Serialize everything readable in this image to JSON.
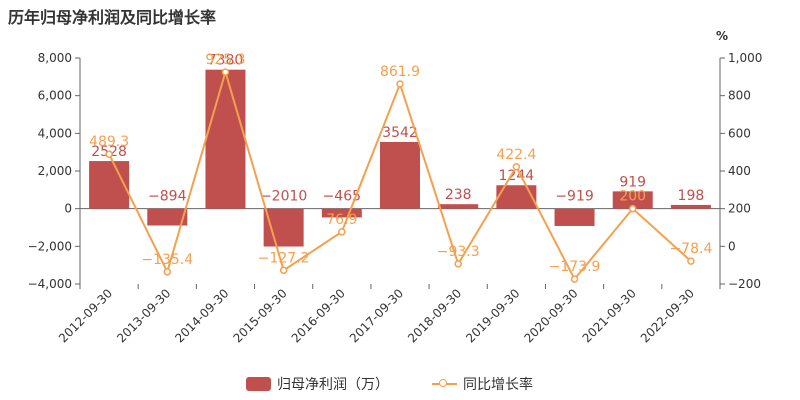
{
  "title": "历年归母净利润及同比增长率",
  "colors": {
    "bar": "#c0504d",
    "line": "#f5a04e",
    "axis": "#666666",
    "text": "#333333"
  },
  "chart_data": {
    "type": "bar",
    "title": "历年归母净利润及同比增长率",
    "categories": [
      "2012-09-30",
      "2013-09-30",
      "2014-09-30",
      "2015-09-30",
      "2016-09-30",
      "2017-09-30",
      "2018-09-30",
      "2019-09-30",
      "2020-09-30",
      "2021-09-30",
      "2022-09-30"
    ],
    "series": [
      {
        "name": "归母净利润（万）",
        "type": "bar",
        "axis": "left",
        "values": [
          2528,
          -894,
          7380,
          -2010,
          -465,
          3542,
          238,
          1244,
          -919,
          919,
          198
        ],
        "labels": [
          "2528",
          "−894",
          "7380",
          "−2010",
          "−465",
          "3542",
          "238",
          "1244",
          "−919",
          "919",
          "198"
        ]
      },
      {
        "name": "同比增长率",
        "type": "line",
        "axis": "right",
        "values": [
          489.3,
          -135.4,
          925.3,
          -127.2,
          76.9,
          861.9,
          -93.3,
          422.4,
          -173.9,
          200,
          -78.4
        ],
        "labels": [
          "489.3",
          "−135.4",
          "925.3",
          "−127.2",
          "76.9",
          "861.9",
          "−93.3",
          "422.4",
          "−173.9",
          "200",
          "−78.4"
        ]
      }
    ],
    "y_left": {
      "min": -4000,
      "max": 8000,
      "ticks": [
        -4000,
        -2000,
        0,
        2000,
        4000,
        6000,
        8000
      ],
      "tick_labels": [
        "−4,000",
        "−2,000",
        "0",
        "2,000",
        "4,000",
        "6,000",
        "8,000"
      ]
    },
    "y_right": {
      "min": -200,
      "max": 1000,
      "unit": "%",
      "ticks": [
        -200,
        0,
        200,
        400,
        600,
        800,
        1000
      ],
      "tick_labels": [
        "−200",
        "0",
        "200",
        "400",
        "600",
        "800",
        "1,000"
      ]
    },
    "grid": false,
    "legend_position": "bottom"
  },
  "legend": {
    "bar_label": "归母净利润（万）",
    "line_label": "同比增长率"
  }
}
